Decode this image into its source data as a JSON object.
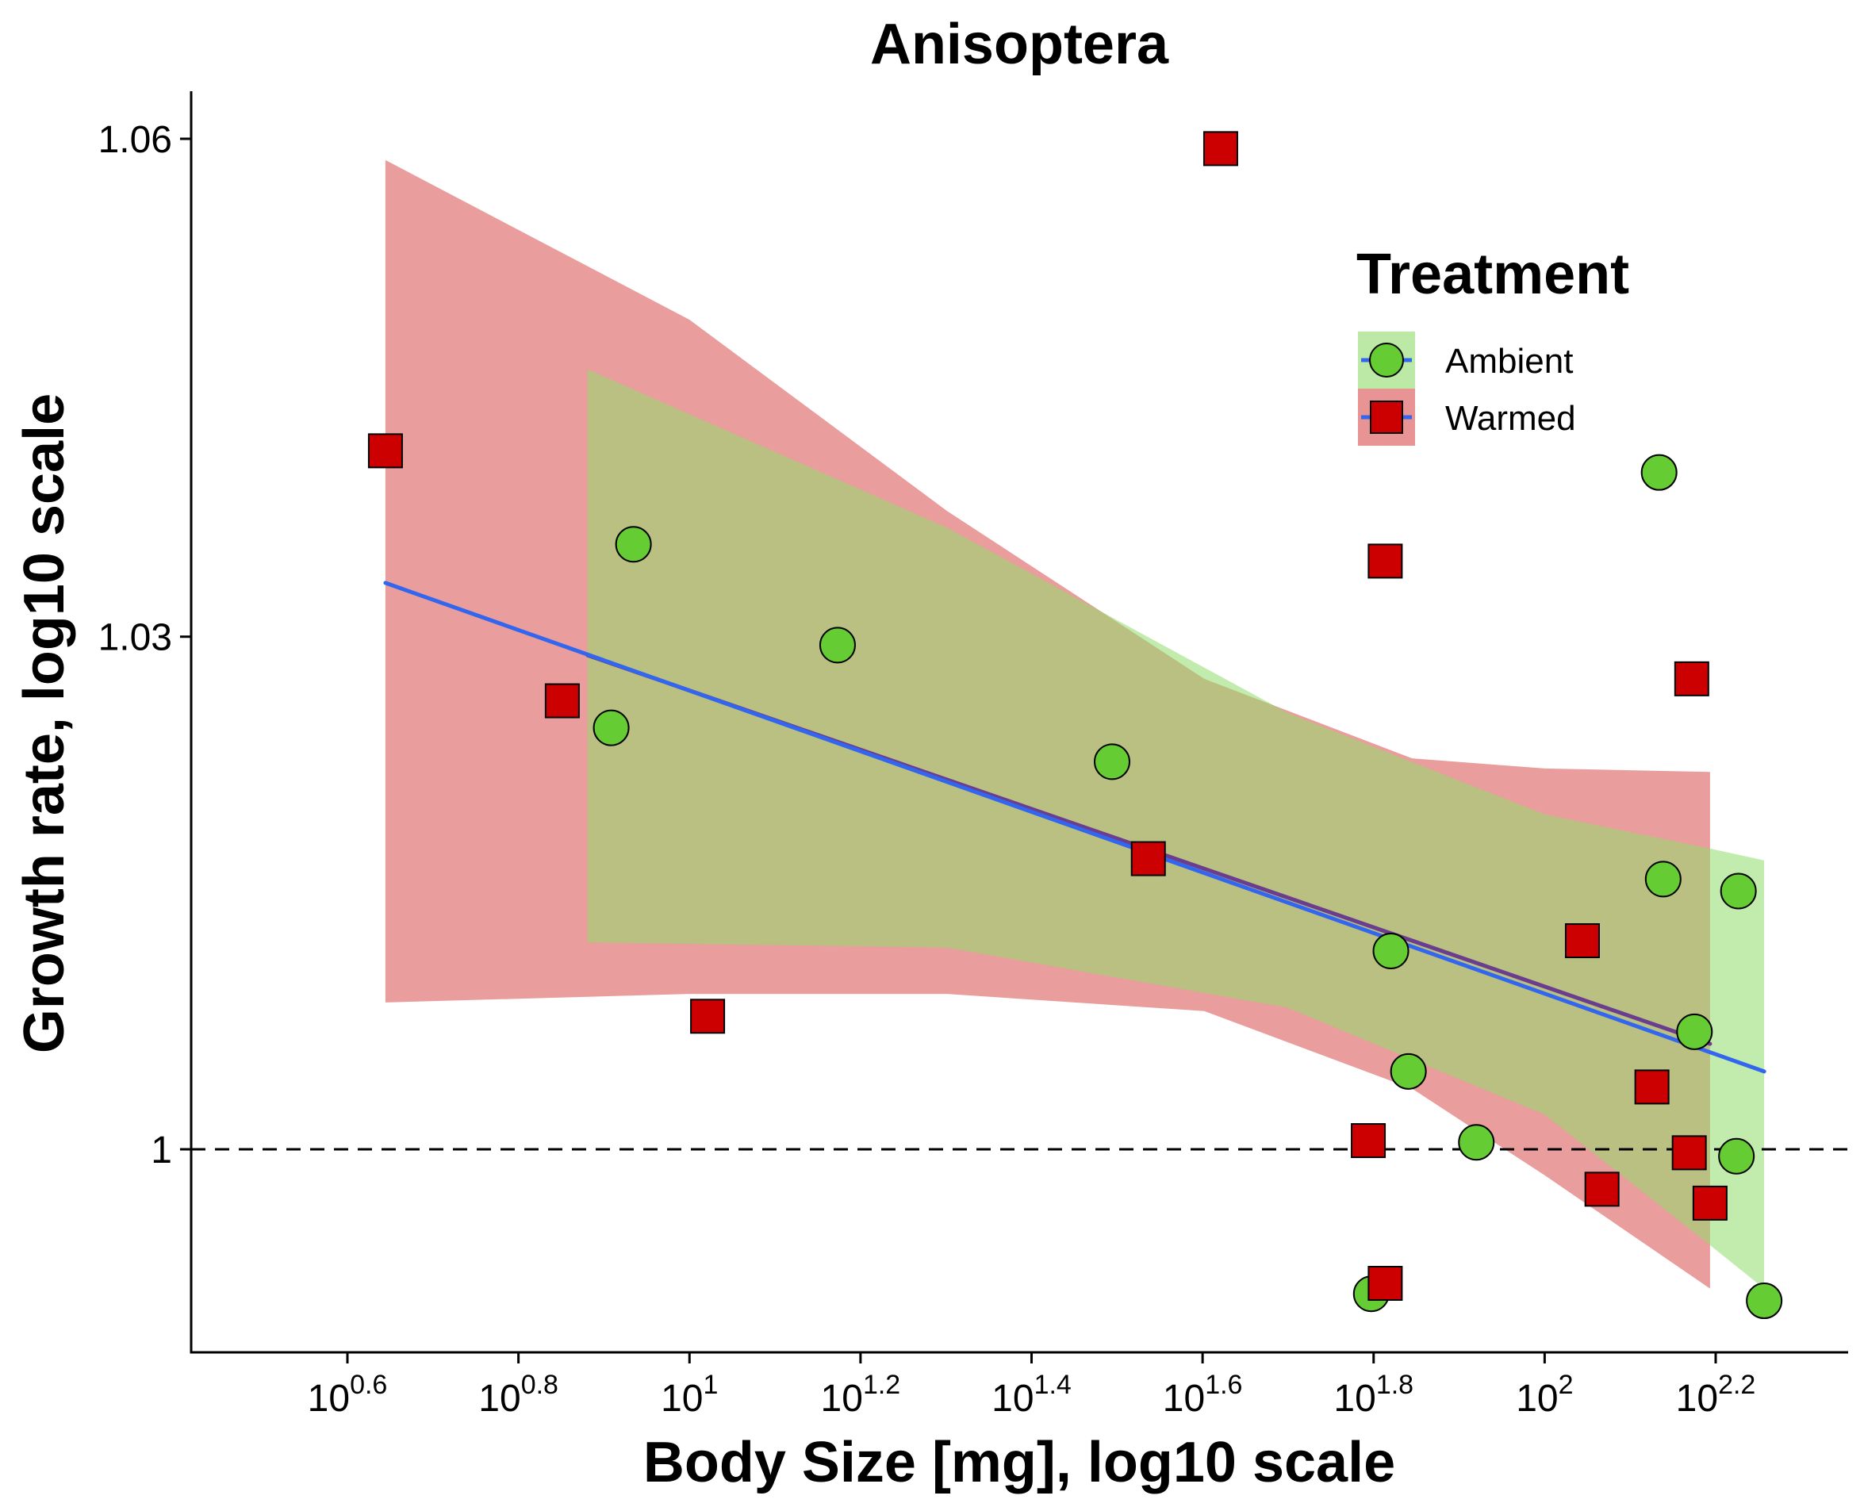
{
  "chart_data": {
    "type": "scatter",
    "title": "Anisoptera",
    "xlabel": "Body Size [mg], log10 scale",
    "ylabel": "Growth rate, log10 scale",
    "x_scale": "log10",
    "y_scale": "log10",
    "x_tick_labels": [
      {
        "log10_value": 0.6,
        "base": "10",
        "exponent": "0.6"
      },
      {
        "log10_value": 0.8,
        "base": "10",
        "exponent": "0.8"
      },
      {
        "log10_value": 1.0,
        "base": "10",
        "exponent": "1"
      },
      {
        "log10_value": 1.2,
        "base": "10",
        "exponent": "1.2"
      },
      {
        "log10_value": 1.4,
        "base": "10",
        "exponent": "1.4"
      },
      {
        "log10_value": 1.6,
        "base": "10",
        "exponent": "1.6"
      },
      {
        "log10_value": 1.8,
        "base": "10",
        "exponent": "1.8"
      },
      {
        "log10_value": 2.0,
        "base": "10",
        "exponent": "2"
      },
      {
        "log10_value": 2.2,
        "base": "10",
        "exponent": "2.2"
      }
    ],
    "y_ticks": [
      {
        "value": 1,
        "label": "1"
      },
      {
        "value": 1.03,
        "label": "1.03"
      },
      {
        "value": 1.06,
        "label": "1.06"
      }
    ],
    "xlim_log10": [
      0.42,
      2.54
    ],
    "ylim": [
      0.988,
      1.0625
    ],
    "reference_line": {
      "y": 1,
      "style": "dashed",
      "color": "#000000"
    },
    "grid": false,
    "legend": {
      "title": "Treatment",
      "placement": "top-right",
      "entries": [
        "Ambient",
        "Warmed"
      ]
    },
    "colors": {
      "ambient_point": "#66cc33",
      "ambient_ribbon": "#8fdc6a",
      "warmed_point": "#cc0000",
      "warmed_ribbon": "#d94c4c",
      "overlap_ribbon": "#c68a6a",
      "fit_line_ambient": "#3366ee",
      "fit_line_warmed": "#6a3d8f"
    },
    "series": [
      {
        "name": "Ambient",
        "marker": "circle",
        "points": [
          {
            "x": 8.1,
            "y": 1.0246
          },
          {
            "x": 8.6,
            "y": 1.0355
          },
          {
            "x": 14.9,
            "y": 1.0295
          },
          {
            "x": 31.2,
            "y": 1.0226
          },
          {
            "x": 62.7,
            "y": 0.9917
          },
          {
            "x": 66.1,
            "y": 1.0115
          },
          {
            "x": 69.3,
            "y": 1.0045
          },
          {
            "x": 83.2,
            "y": 1.0004
          },
          {
            "x": 136.1,
            "y": 1.0398
          },
          {
            "x": 137.6,
            "y": 1.0157
          },
          {
            "x": 149.7,
            "y": 1.0068
          },
          {
            "x": 168.5,
            "y": 1.015
          },
          {
            "x": 167.6,
            "y": 0.9996
          },
          {
            "x": 180.6,
            "y": 0.9913
          }
        ],
        "fit": {
          "x": [
            7.6,
            180.6
          ],
          "y": [
            1.029,
            1.0053
          ]
        },
        "ci_band": {
          "x": [
            7.6,
            20,
            50,
            100,
            156,
            180.6
          ],
          "upper": [
            1.046,
            1.0365,
            1.0255,
            1.0195,
            1.0175,
            1.0168
          ],
          "lower": [
            1.012,
            1.0117,
            1.0082,
            1.002,
            0.9945,
            0.992
          ]
        }
      },
      {
        "name": "Warmed",
        "marker": "square",
        "points": [
          {
            "x": 4.41,
            "y": 1.0411
          },
          {
            "x": 7.1,
            "y": 1.0262
          },
          {
            "x": 10.5,
            "y": 1.0077
          },
          {
            "x": 34.4,
            "y": 1.0169
          },
          {
            "x": 41.8,
            "y": 1.0594
          },
          {
            "x": 62.2,
            "y": 1.0005
          },
          {
            "x": 65.1,
            "y": 0.9923
          },
          {
            "x": 65.1,
            "y": 1.0345
          },
          {
            "x": 110.7,
            "y": 1.0121
          },
          {
            "x": 116.7,
            "y": 0.9977
          },
          {
            "x": 133.5,
            "y": 1.0036
          },
          {
            "x": 147.6,
            "y": 0.9998
          },
          {
            "x": 148.6,
            "y": 1.0275
          },
          {
            "x": 156.1,
            "y": 0.9969
          }
        ],
        "fit": {
          "x": [
            7.6,
            156.1
          ],
          "y": [
            1.0289,
            1.0061
          ]
        },
        "ci_band": {
          "x": [
            4.41,
            10,
            20,
            40,
            70,
            100,
            156.1
          ],
          "upper": [
            1.0587,
            1.049,
            1.0375,
            1.0275,
            1.0228,
            1.0222,
            1.022
          ],
          "lower": [
            1.0085,
            1.009,
            1.009,
            1.008,
            1.0035,
            0.9985,
            0.992
          ]
        }
      }
    ]
  }
}
